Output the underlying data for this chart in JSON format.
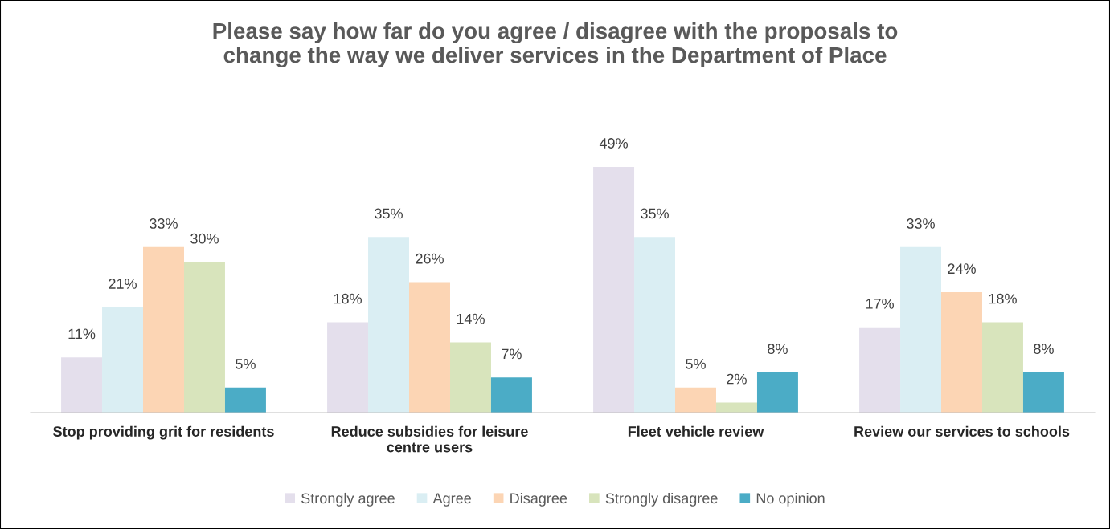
{
  "chart_data": {
    "type": "bar",
    "title": "Please say how far do you agree / disagree with the proposals to\nchange the way we deliver services in the Department of Place",
    "categories": [
      "Stop providing grit for residents",
      "Reduce subsidies for leisure\ncentre users",
      "Fleet vehicle review",
      "Review our services to schools"
    ],
    "series": [
      {
        "name": "Strongly agree",
        "color": "#e4dfec",
        "values": [
          11,
          18,
          49,
          17
        ],
        "value_labels": [
          "11%",
          "18%",
          "49%",
          "17%"
        ]
      },
      {
        "name": "Agree",
        "color": "#daeef3",
        "values": [
          21,
          35,
          35,
          33
        ],
        "value_labels": [
          "21%",
          "35%",
          "35%",
          "33%"
        ]
      },
      {
        "name": "Disagree",
        "color": "#fcd5b4",
        "values": [
          33,
          26,
          5,
          24
        ],
        "value_labels": [
          "33%",
          "26%",
          "5%",
          "24%"
        ]
      },
      {
        "name": "Strongly disagree",
        "color": "#d8e4bc",
        "values": [
          30,
          14,
          2,
          18
        ],
        "value_labels": [
          "30%",
          "14%",
          "2%",
          "18%"
        ]
      },
      {
        "name": "No opinion",
        "color": "#4bacc6",
        "values": [
          5,
          7,
          8,
          8
        ],
        "value_labels": [
          "5%",
          "7%",
          "8%",
          "8%"
        ]
      }
    ],
    "tick_labels": "x",
    "grid": false,
    "legend": "bottom"
  }
}
